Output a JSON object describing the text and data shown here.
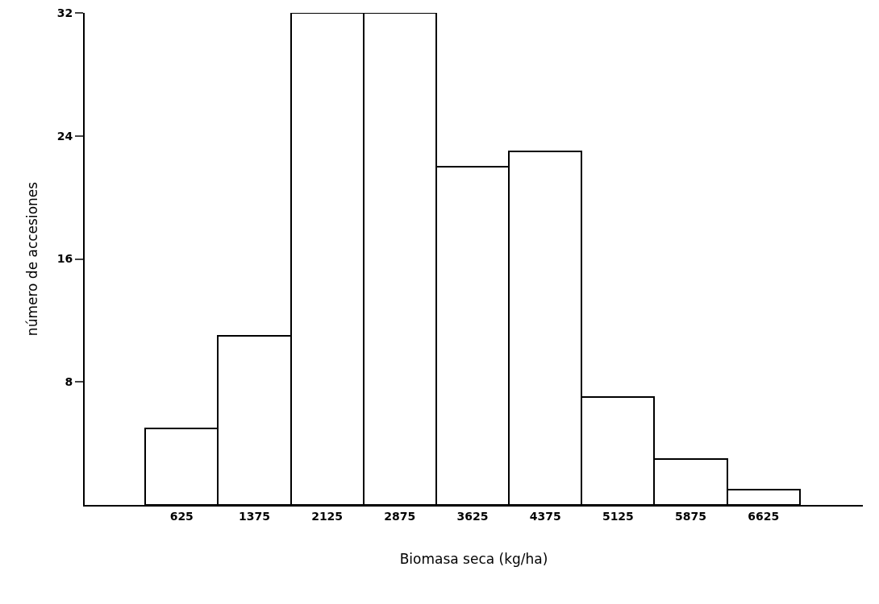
{
  "chart_data": {
    "type": "histogram",
    "xlabel": "Biomasa seca (kg/ha)",
    "ylabel": "número de accesiones",
    "bins": [
      250,
      1000,
      1750,
      2500,
      3250,
      4000,
      4750,
      5500,
      6250,
      7000
    ],
    "values": [
      5,
      11,
      32,
      32,
      22,
      23,
      7,
      3,
      1
    ],
    "color": "#ffffff",
    "xlim": [
      -375,
      7650
    ],
    "xticks": [
      625,
      1375,
      2125,
      2875,
      3625,
      4375,
      5125,
      5875,
      6625
    ],
    "ylim": [
      0,
      32
    ],
    "yticks": [
      8,
      16,
      24,
      32
    ],
    "grid": false
  }
}
